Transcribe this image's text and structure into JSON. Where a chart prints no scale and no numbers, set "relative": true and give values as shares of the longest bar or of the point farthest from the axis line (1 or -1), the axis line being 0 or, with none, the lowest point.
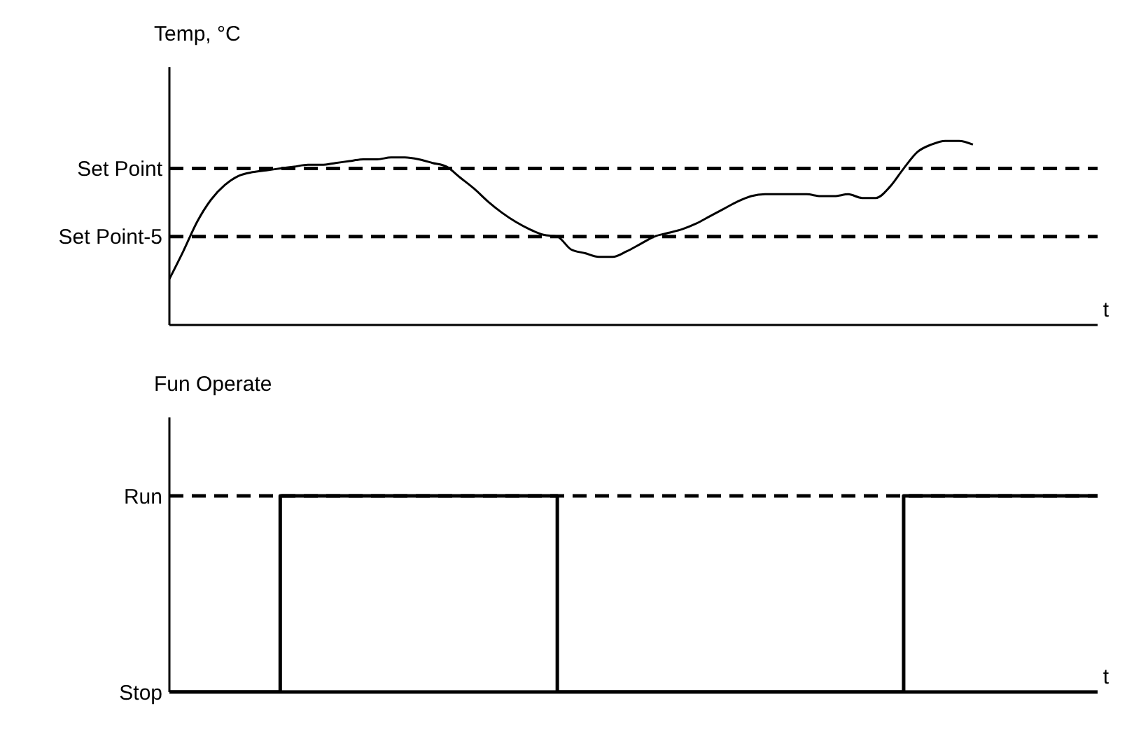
{
  "chart_data": [
    {
      "type": "line",
      "ylabel": "Temp, °C",
      "xlabel": "t",
      "relative": true,
      "color": "#000000",
      "legend": false,
      "grid": false,
      "categories": [
        null,
        null,
        null,
        null,
        null,
        null,
        null,
        null,
        null,
        null,
        null,
        null,
        null,
        null,
        null,
        null,
        null,
        null,
        null,
        null,
        null,
        null,
        null,
        null,
        null,
        null,
        null,
        null,
        null,
        null,
        null,
        null,
        null,
        null,
        null,
        null,
        null,
        null,
        null,
        null,
        null,
        null,
        null,
        null,
        null,
        null,
        null,
        null,
        null,
        null,
        null,
        null,
        null,
        null,
        null,
        null,
        null,
        null,
        null,
        null,
        null,
        null,
        null,
        null,
        null,
        null,
        null,
        null
      ],
      "values": [
        0.25,
        0.4,
        0.56,
        0.68,
        0.76,
        0.81,
        0.83,
        0.84,
        0.85,
        0.86,
        0.87,
        0.87,
        0.88,
        0.89,
        0.9,
        0.9,
        0.91,
        0.91,
        0.9,
        0.88,
        0.86,
        0.8,
        0.74,
        0.67,
        0.61,
        0.56,
        0.52,
        0.49,
        0.48,
        0.41,
        0.39,
        0.37,
        0.37,
        0.4,
        0.44,
        0.48,
        0.5,
        0.52,
        0.55,
        0.59,
        0.63,
        0.67,
        0.7,
        0.71,
        0.71,
        0.71,
        0.71,
        0.7,
        0.7,
        0.71,
        0.69,
        0.69,
        0.75,
        0.85,
        0.94,
        0.98,
        1,
        1,
        0.98,
        null,
        null,
        null,
        null,
        null,
        null,
        null,
        null,
        null
      ],
      "ref_lines": [
        {
          "axis": "y",
          "value": 0.85,
          "label": "Set Point",
          "line_style": "dashed",
          "color": "#000000"
        },
        {
          "axis": "y",
          "value": 0.48,
          "label": "Set Point-5",
          "line_style": "dashed",
          "color": "#000000"
        }
      ]
    },
    {
      "type": "step",
      "ylabel": "Fun Operate",
      "xlabel": "t",
      "relative": true,
      "color": "#000000",
      "legend": false,
      "grid": false,
      "categories": [
        null,
        null,
        null,
        null,
        null,
        null,
        null,
        null,
        null,
        null,
        null,
        null,
        null,
        null,
        null,
        null,
        null,
        null,
        null,
        null,
        null,
        null,
        null,
        null,
        null,
        null,
        null,
        null,
        null,
        null,
        null,
        null,
        null,
        null,
        null,
        null,
        null,
        null,
        null,
        null,
        null,
        null,
        null,
        null,
        null,
        null,
        null,
        null,
        null,
        null,
        null,
        null,
        null,
        null,
        null,
        null,
        null,
        null,
        null,
        null,
        null,
        null,
        null,
        null,
        null,
        null,
        null,
        null
      ],
      "values": [
        0,
        0,
        0,
        0,
        0,
        0,
        0,
        0,
        1,
        1,
        1,
        1,
        1,
        1,
        1,
        1,
        1,
        1,
        1,
        1,
        1,
        1,
        1,
        1,
        1,
        1,
        1,
        1,
        0,
        0,
        0,
        0,
        0,
        0,
        0,
        0,
        0,
        0,
        0,
        0,
        0,
        0,
        0,
        0,
        0,
        0,
        0,
        0,
        0,
        0,
        0,
        0,
        0,
        1,
        1,
        1,
        1,
        1,
        1,
        1,
        1,
        1,
        1,
        1,
        1,
        1,
        1,
        1
      ],
      "ref_lines": [
        {
          "axis": "y",
          "value": 1,
          "label": "Run",
          "line_style": "dashed",
          "color": "#000000"
        },
        {
          "axis": "y",
          "value": 0,
          "label": "Stop",
          "line_style": "solid",
          "color": "#000000"
        }
      ]
    }
  ]
}
